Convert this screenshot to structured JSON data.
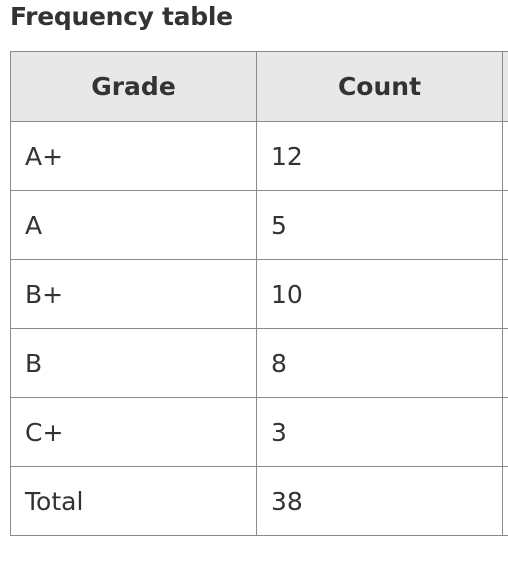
{
  "title": "Frequency table",
  "table": {
    "headers": [
      "Grade",
      "Count",
      ""
    ],
    "rows": [
      {
        "grade": "A+",
        "count": "12"
      },
      {
        "grade": "A",
        "count": "5"
      },
      {
        "grade": "B+",
        "count": "10"
      },
      {
        "grade": "B",
        "count": "8"
      },
      {
        "grade": "C+",
        "count": "3"
      },
      {
        "grade": "Total",
        "count": "38"
      }
    ]
  },
  "colors": {
    "header_background": "#e8e8e8",
    "border": "#8a8a8a",
    "text": "#333333"
  }
}
